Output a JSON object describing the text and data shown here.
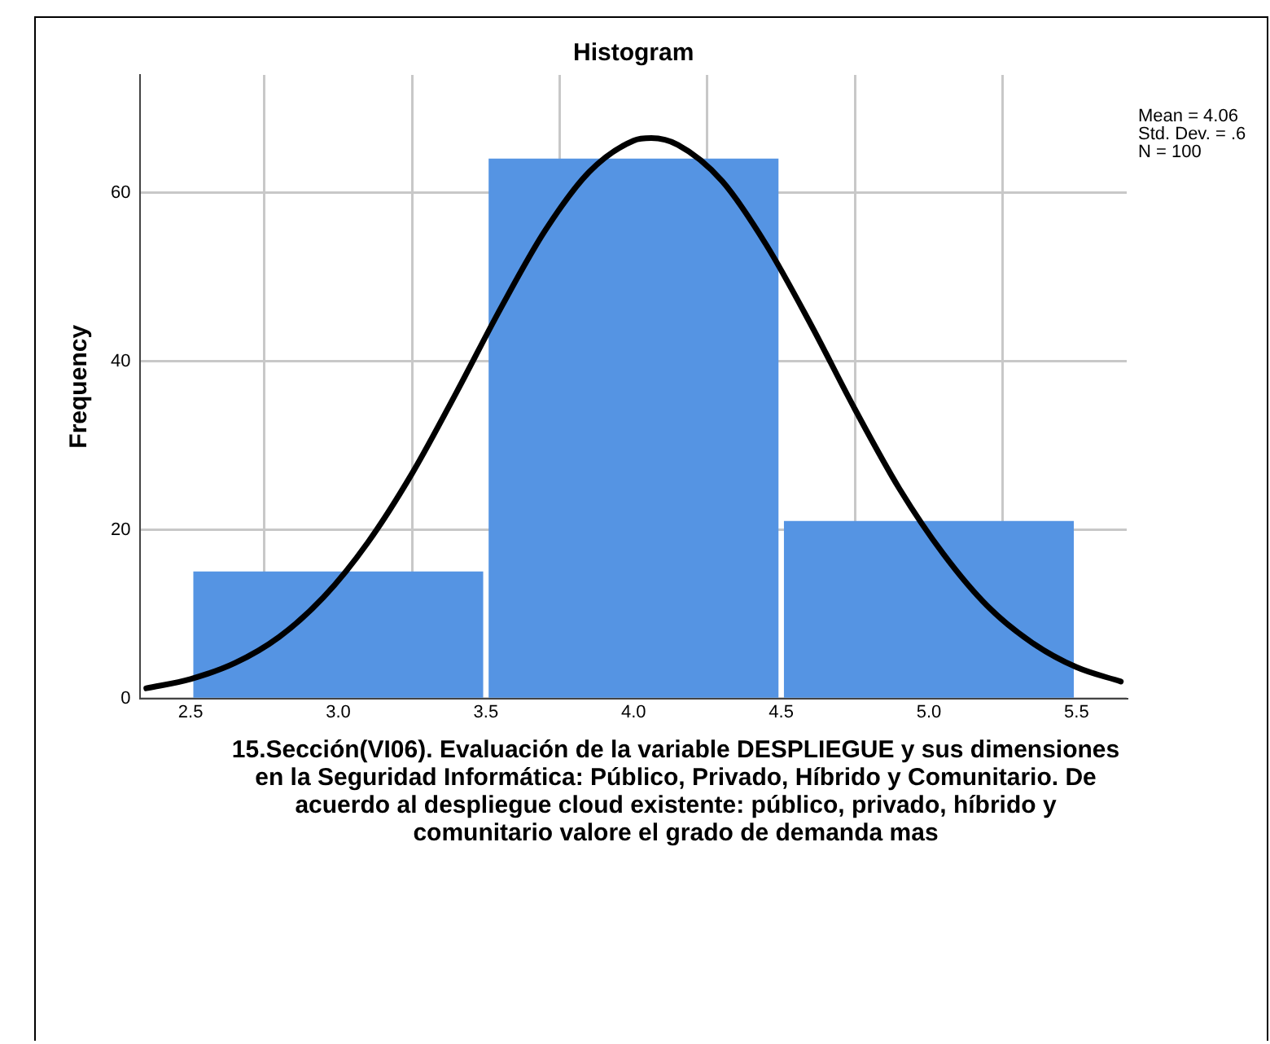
{
  "chart_data": {
    "type": "histogram",
    "title": "Histogram",
    "xlabel": "15.Sección(VI06). Evaluación de la variable DESPLIEGUE y sus dimensiones en la Seguridad Informática: Público, Privado, Híbrido y Comunitario. De acuerdo al despliegue cloud existente: público, privado, híbrido y comunitario valore el grado de demanda mas",
    "ylabel": "Frequency",
    "bins": [
      2.5,
      3.5,
      4.5,
      5.5
    ],
    "series": [
      {
        "color": "#5594e3",
        "values": [
          15,
          64,
          21
        ]
      },
      {
        "type": "line",
        "color": "#000000",
        "x": [
          2.35,
          2.5,
          2.65,
          2.8,
          2.95,
          3.1,
          3.25,
          3.4,
          3.55,
          3.7,
          3.85,
          4.0,
          4.06,
          4.15,
          4.3,
          4.45,
          4.6,
          4.75,
          4.9,
          5.05,
          5.2,
          5.35,
          5.5,
          5.65
        ],
        "values": [
          1.2,
          2.3,
          4.2,
          7.3,
          12,
          18.5,
          26.7,
          36.3,
          46.3,
          55.5,
          62.5,
          66.2,
          66.5,
          65.7,
          61.4,
          53.8,
          44.4,
          34.3,
          24.9,
          17.1,
          10.9,
          6.6,
          3.7,
          2
        ]
      }
    ],
    "xlim": [
      2.33,
      5.67
    ],
    "xticks": [
      2.5,
      {
        "value": 3,
        "label": "3.0"
      },
      3.5,
      {
        "value": 4,
        "label": "4.0"
      },
      4.5,
      {
        "value": 5,
        "label": "5.0"
      },
      5.5
    ],
    "ylim": [
      0,
      74
    ],
    "yticks": [
      0,
      20,
      40,
      60
    ],
    "grid": true,
    "marker": "none",
    "annotations": [
      "Mean = 4.06",
      "Std. Dev. = .6",
      "N = 100"
    ]
  }
}
